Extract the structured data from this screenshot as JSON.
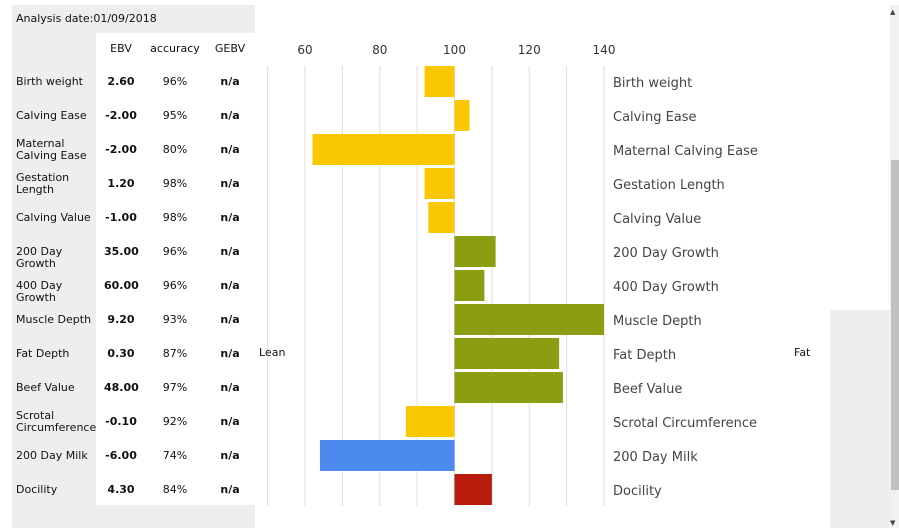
{
  "analysis_date": "Analysis date:01/09/2018",
  "columns": {
    "ebv": "EBV",
    "accuracy": "accuracy",
    "gebv": "GEBV"
  },
  "scale_labels": {
    "left": "Lean",
    "right": "Fat"
  },
  "colors": {
    "yellow": "#f9c800",
    "olive": "#8b9d10",
    "blue": "#4d8af0",
    "red": "#b81c0c",
    "grid": "#dddddd"
  },
  "chart_data": {
    "type": "bar",
    "orientation": "horizontal",
    "baseline": 100,
    "xlim": [
      60,
      140
    ],
    "xticks": [
      60,
      80,
      100,
      120,
      140
    ],
    "grid": true,
    "traits": [
      {
        "name": "Birth weight",
        "label": "Birth weight",
        "ebv": "2.60",
        "accuracy": "96%",
        "gebv": "n/a",
        "value": 92,
        "color": "yellow"
      },
      {
        "name": "Calving Ease",
        "label": "Calving Ease",
        "ebv": "-2.00",
        "accuracy": "95%",
        "gebv": "n/a",
        "value": 104,
        "color": "yellow"
      },
      {
        "name": "Maternal Calving Ease",
        "label": "Maternal Calving Ease",
        "ebv": "-2.00",
        "accuracy": "80%",
        "gebv": "n/a",
        "value": 62,
        "color": "yellow"
      },
      {
        "name": "Gestation Length",
        "label": "Gestation Length",
        "ebv": "1.20",
        "accuracy": "98%",
        "gebv": "n/a",
        "value": 92,
        "color": "yellow"
      },
      {
        "name": "Calving Value",
        "label": "Calving Value",
        "ebv": "-1.00",
        "accuracy": "98%",
        "gebv": "n/a",
        "value": 93,
        "color": "yellow"
      },
      {
        "name": "200 Day Growth",
        "label": "200 Day Growth",
        "ebv": "35.00",
        "accuracy": "96%",
        "gebv": "n/a",
        "value": 111,
        "color": "olive"
      },
      {
        "name": "400 Day Growth",
        "label": "400 Day Growth",
        "ebv": "60.00",
        "accuracy": "96%",
        "gebv": "n/a",
        "value": 108,
        "color": "olive"
      },
      {
        "name": "Muscle Depth",
        "label": "Muscle Depth",
        "ebv": "9.20",
        "accuracy": "93%",
        "gebv": "n/a",
        "value": 140,
        "color": "olive"
      },
      {
        "name": "Fat Depth",
        "label": "Fat Depth",
        "ebv": "0.30",
        "accuracy": "87%",
        "gebv": "n/a",
        "value": 128,
        "color": "olive"
      },
      {
        "name": "Beef Value",
        "label": "Beef Value",
        "ebv": "48.00",
        "accuracy": "97%",
        "gebv": "n/a",
        "value": 129,
        "color": "olive"
      },
      {
        "name": "Scrotal Circumference",
        "label": "Scrotal Circumference",
        "ebv": "-0.10",
        "accuracy": "92%",
        "gebv": "n/a",
        "value": 87,
        "color": "yellow"
      },
      {
        "name": "200 Day Milk",
        "label": "200 Day Milk",
        "ebv": "-6.00",
        "accuracy": "74%",
        "gebv": "n/a",
        "value": 64,
        "color": "blue"
      },
      {
        "name": "Docility",
        "label": "Docility",
        "ebv": "4.30",
        "accuracy": "84%",
        "gebv": "n/a",
        "value": 110,
        "color": "red"
      }
    ]
  }
}
